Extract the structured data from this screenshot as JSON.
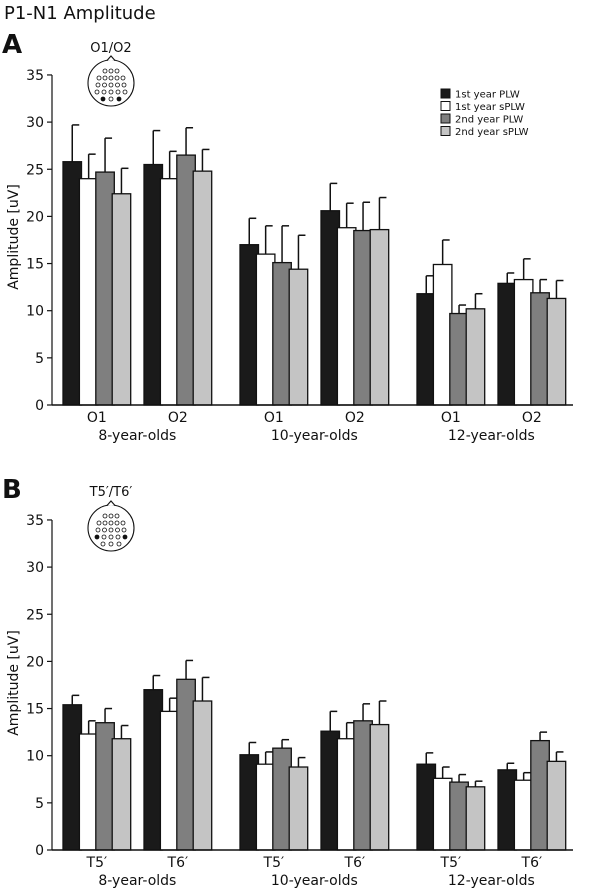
{
  "figure": {
    "title": "P1-N1 Amplitude"
  },
  "legend": {
    "entries": [
      {
        "label": "1st year PLW",
        "color": "#1a1a1a"
      },
      {
        "label": "1st year sPLW",
        "color": "#ffffff"
      },
      {
        "label": "2nd year PLW",
        "color": "#7f7f7f"
      },
      {
        "label": "2nd year sPLW",
        "color": "#c4c4c4"
      }
    ]
  },
  "chart_data": [
    {
      "type": "bar",
      "panel_letter": "A",
      "inset_label": "O1/O2",
      "ylabel": "Amplitude [uV]",
      "ylim": [
        0,
        35
      ],
      "yticks": [
        0,
        5,
        10,
        15,
        20,
        25,
        30,
        35
      ],
      "groups": [
        "8-year-olds",
        "10-year-olds",
        "12-year-olds"
      ],
      "categories": [
        "O1",
        "O2",
        "O1",
        "O2",
        "O1",
        "O2"
      ],
      "series": [
        {
          "name": "1st year PLW",
          "values": [
            25.8,
            25.5,
            17.0,
            20.6,
            11.8,
            12.9
          ],
          "errors": [
            3.9,
            3.6,
            2.8,
            2.9,
            1.9,
            1.1
          ]
        },
        {
          "name": "1st year sPLW",
          "values": [
            24.0,
            24.0,
            16.0,
            18.8,
            14.9,
            13.3
          ],
          "errors": [
            2.6,
            2.9,
            3.0,
            2.6,
            2.6,
            2.2
          ]
        },
        {
          "name": "2nd year PLW",
          "values": [
            24.7,
            26.5,
            15.1,
            18.5,
            9.7,
            11.9
          ],
          "errors": [
            3.6,
            2.9,
            3.9,
            3.0,
            0.9,
            1.4
          ]
        },
        {
          "name": "2nd year sPLW",
          "values": [
            22.4,
            24.8,
            14.4,
            18.6,
            10.2,
            11.3
          ],
          "errors": [
            2.7,
            2.3,
            3.6,
            3.4,
            1.6,
            1.9
          ]
        }
      ]
    },
    {
      "type": "bar",
      "panel_letter": "B",
      "inset_label": "T5′/T6′",
      "ylabel": "Amplitude [uV]",
      "ylim": [
        0,
        35
      ],
      "yticks": [
        0,
        5,
        10,
        15,
        20,
        25,
        30,
        35
      ],
      "groups": [
        "8-year-olds",
        "10-year-olds",
        "12-year-olds"
      ],
      "categories": [
        "T5′",
        "T6′",
        "T5′",
        "T6′",
        "T5′",
        "T6′"
      ],
      "series": [
        {
          "name": "1st year PLW",
          "values": [
            15.4,
            17.0,
            10.1,
            12.6,
            9.1,
            8.5
          ],
          "errors": [
            1.0,
            1.5,
            1.3,
            2.1,
            1.2,
            0.7
          ]
        },
        {
          "name": "1st year sPLW",
          "values": [
            12.3,
            14.7,
            9.1,
            11.8,
            7.6,
            7.4
          ],
          "errors": [
            1.4,
            1.4,
            1.3,
            1.7,
            1.2,
            0.8
          ]
        },
        {
          "name": "2nd year PLW",
          "values": [
            13.5,
            18.1,
            10.8,
            13.7,
            7.2,
            11.6
          ],
          "errors": [
            1.5,
            2.0,
            0.9,
            1.8,
            0.8,
            0.9
          ]
        },
        {
          "name": "2nd year sPLW",
          "values": [
            11.8,
            15.8,
            8.8,
            13.3,
            6.7,
            9.4
          ],
          "errors": [
            1.4,
            2.5,
            1.0,
            2.5,
            0.6,
            1.0
          ]
        }
      ]
    }
  ]
}
